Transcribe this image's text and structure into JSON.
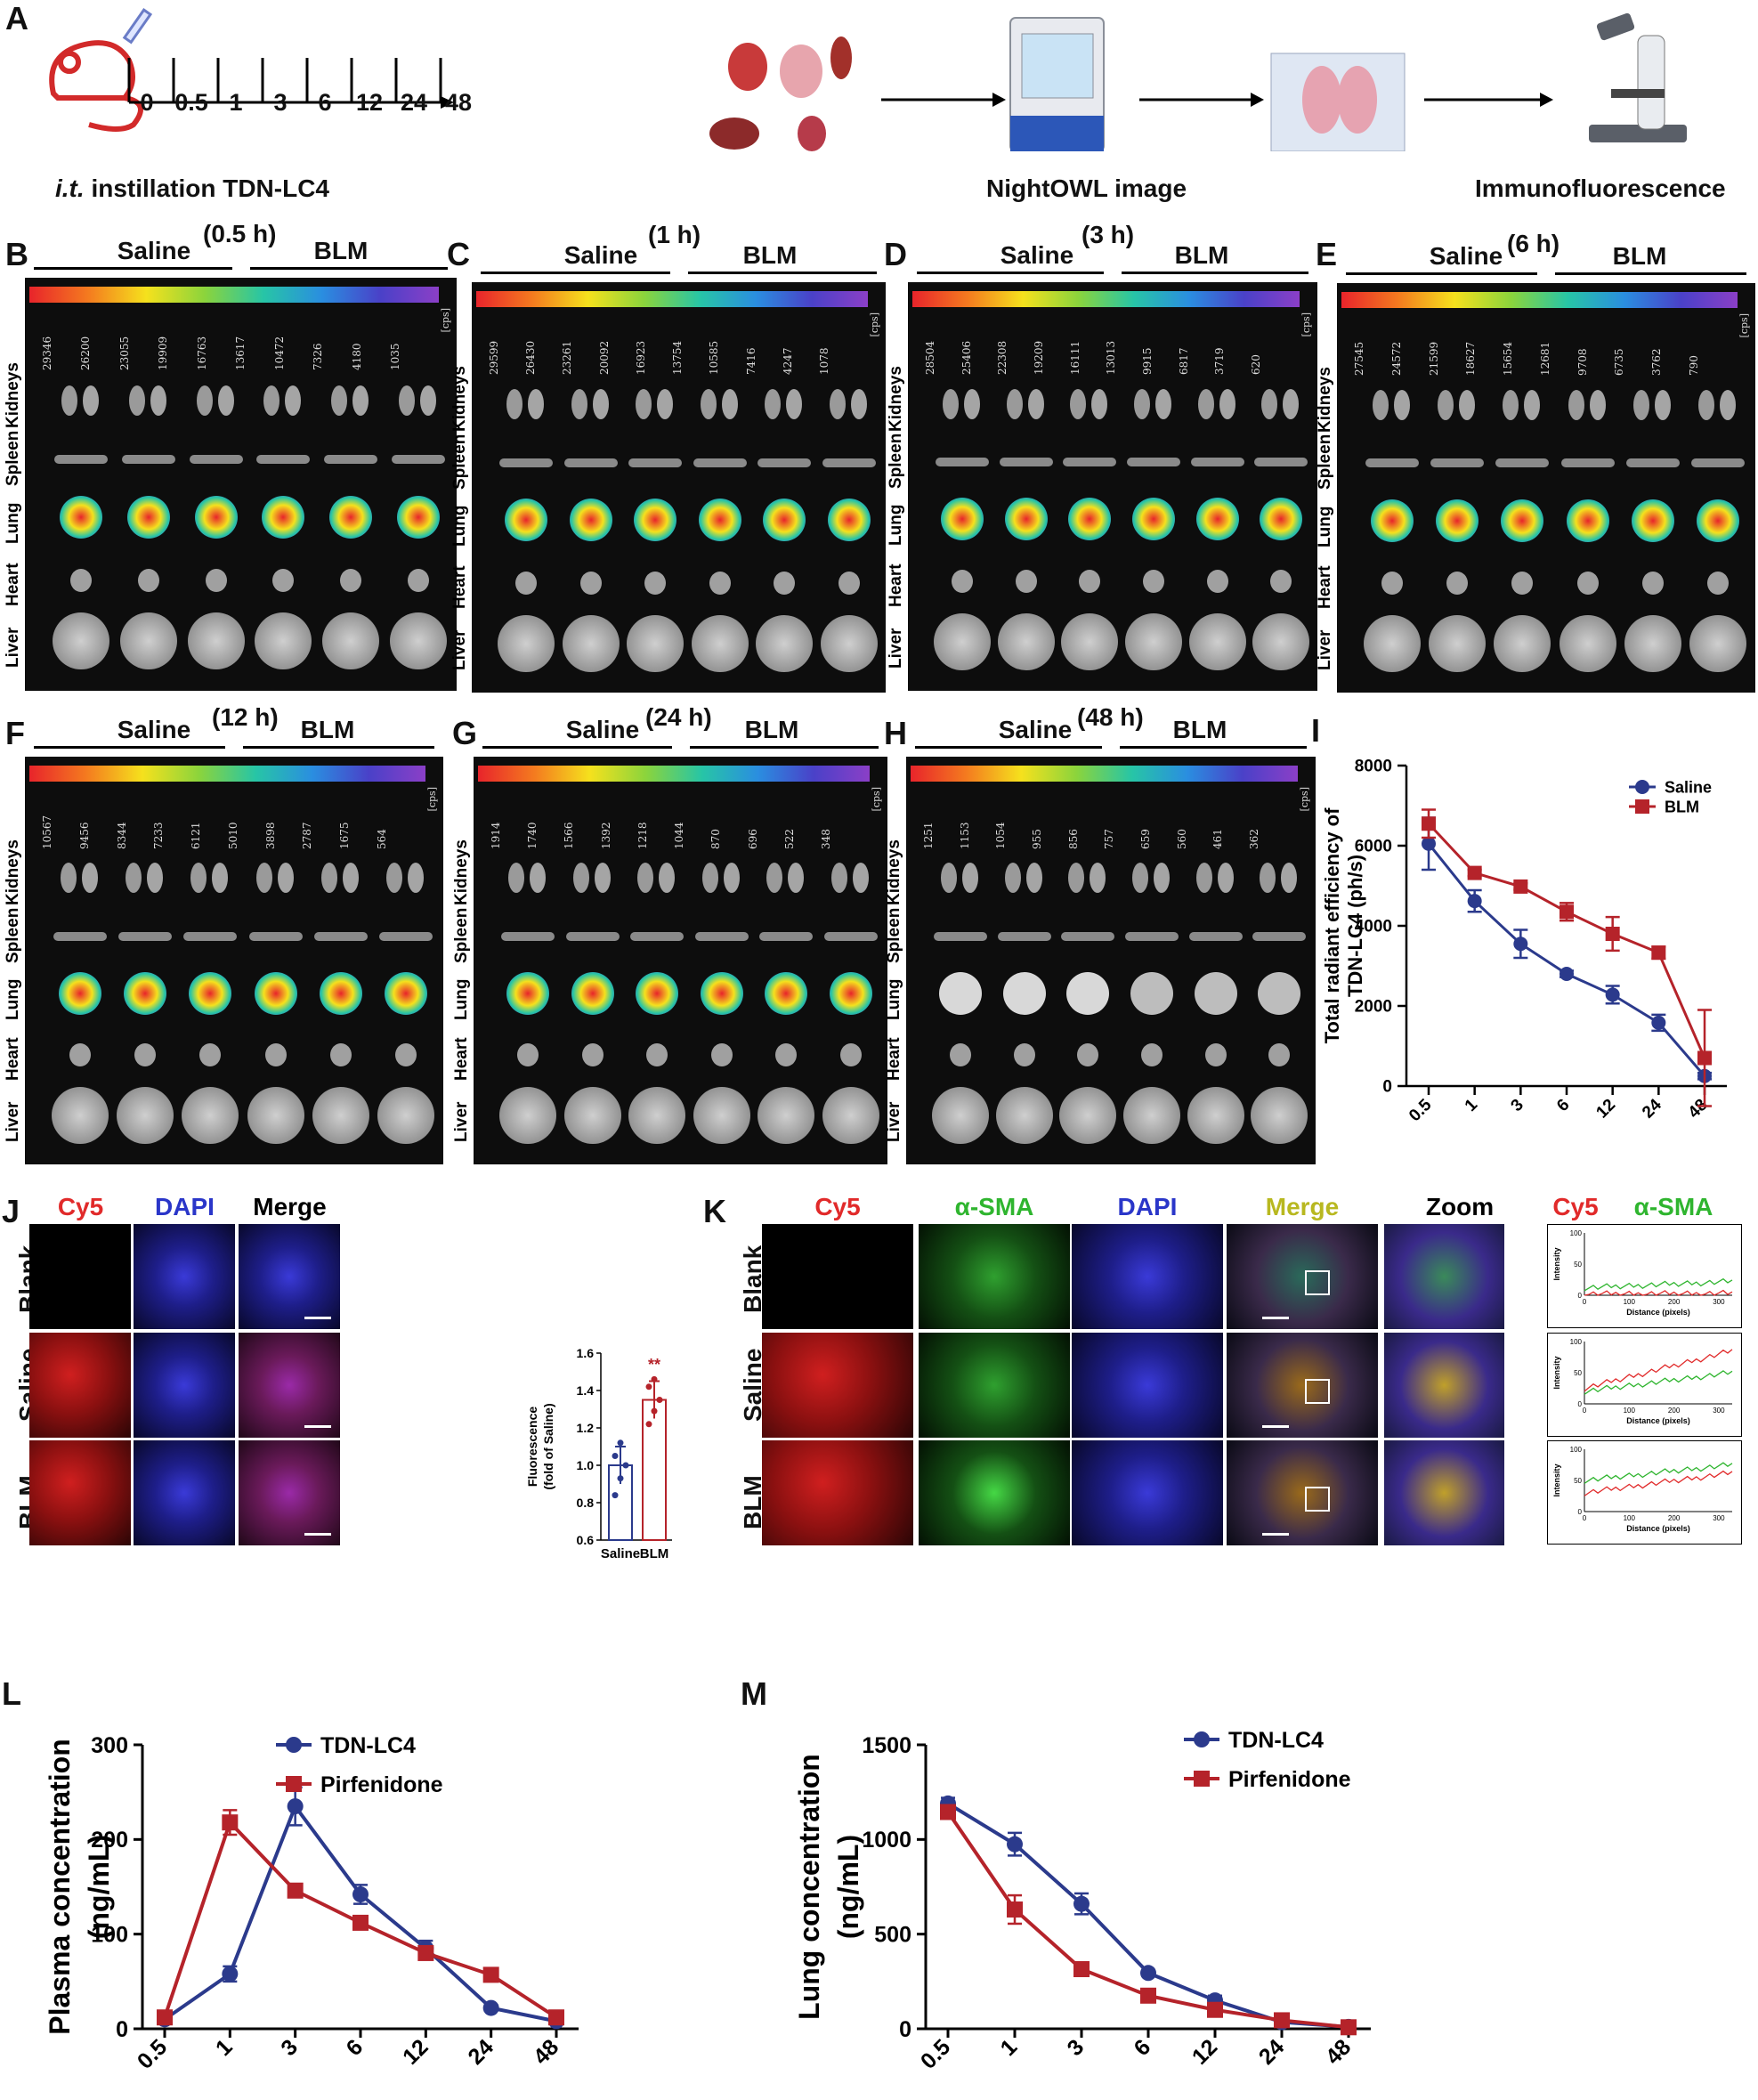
{
  "panel_letters": {
    "A": "A",
    "B": "B",
    "C": "C",
    "D": "D",
    "E": "E",
    "F": "F",
    "G": "G",
    "H": "H",
    "I": "I",
    "J": "J",
    "K": "K",
    "L": "L",
    "M": "M"
  },
  "schematic": {
    "timepoints": [
      "0",
      "0.5",
      "1",
      "3",
      "6",
      "12",
      "24",
      "48"
    ],
    "instillation_prefix": "i.t.",
    "instillation_suffix": " instillation TDN-LC4",
    "step2": "NightOWL image",
    "step3": "Immunofluorescence"
  },
  "imaging": {
    "group_saline": "Saline",
    "group_blm": "BLM",
    "unit": "[cps]",
    "rows": [
      "Liver",
      "Heart",
      "Lung",
      "Spleen",
      "Kidneys"
    ],
    "panels": [
      {
        "letter": "B",
        "time": "(0.5 h)",
        "scale": [
          "29346",
          "26200",
          "23055",
          "19909",
          "16763",
          "13617",
          "10472",
          "7326",
          "4180",
          "1035"
        ]
      },
      {
        "letter": "C",
        "time": "(1 h)",
        "scale": [
          "29599",
          "26430",
          "23261",
          "20092",
          "16923",
          "13754",
          "10585",
          "7416",
          "4247",
          "1078"
        ]
      },
      {
        "letter": "D",
        "time": "(3 h)",
        "scale": [
          "28504",
          "25406",
          "22308",
          "19209",
          "16111",
          "13013",
          "9915",
          "6817",
          "3719",
          "620"
        ]
      },
      {
        "letter": "E",
        "time": "(6 h)",
        "scale": [
          "27545",
          "24572",
          "21599",
          "18627",
          "15654",
          "12681",
          "9708",
          "6735",
          "3762",
          "790"
        ]
      },
      {
        "letter": "F",
        "time": "(12 h)",
        "scale": [
          "10567",
          "9456",
          "8344",
          "7233",
          "6121",
          "5010",
          "3898",
          "2787",
          "1675",
          "564"
        ]
      },
      {
        "letter": "G",
        "time": "(24 h)",
        "scale": [
          "1914",
          "1740",
          "1566",
          "1392",
          "1218",
          "1044",
          "870",
          "696",
          "522",
          "348"
        ]
      },
      {
        "letter": "H",
        "time": "(48 h)",
        "scale": [
          "1251",
          "1153",
          "1054",
          "955",
          "856",
          "757",
          "659",
          "560",
          "461",
          "362"
        ]
      }
    ]
  },
  "panel_i": {
    "ylabel_line1": "Total radiant efficiency of",
    "ylabel_line2": "TDN-LC4 (ph/s)"
  },
  "panel_j": {
    "columns": [
      "Cy5",
      "DAPI",
      "Merge"
    ],
    "rows": [
      "Blank",
      "Saline",
      "BLM"
    ],
    "bar_ylabel_line1": "Fluorescence",
    "bar_ylabel_line2": "(fold of Saline)",
    "significance": "**"
  },
  "panel_k": {
    "columns": [
      "Cy5",
      "α-SMA",
      "DAPI",
      "Merge",
      "Zoom"
    ],
    "rows": [
      "Blank",
      "Saline",
      "BLM"
    ],
    "profile_title_cy5": "Cy5",
    "profile_title_sma": "α-SMA",
    "profile_ylabel": "Intensity",
    "profile_xlabel": "Distance (pixels)"
  },
  "panel_l": {
    "ylabel_line1": "Plasma concentration",
    "ylabel_line2": "(ng/mL)"
  },
  "panel_m": {
    "ylabel_line1": "Lung concentration",
    "ylabel_line2": "(ng/mL)"
  },
  "colors": {
    "saline": "#2b3a8c",
    "blm": "#b5232a",
    "tdn": "#2b3a8c",
    "pirfenidone": "#b5232a",
    "cy5": "#e12a2a",
    "sma": "#2fb52f",
    "dapi": "#2a36c9",
    "merge": "#b8b820"
  },
  "chart_data": [
    {
      "id": "I",
      "type": "line",
      "categories": [
        "0.5",
        "1",
        "3",
        "6",
        "12",
        "24",
        "48"
      ],
      "ylim": [
        0,
        8000
      ],
      "yticks": [
        0,
        2000,
        4000,
        6000,
        8000
      ],
      "legend_position": "top-right",
      "series": [
        {
          "name": "Saline",
          "values": [
            6050,
            4620,
            3550,
            2800,
            2280,
            1580,
            250
          ],
          "errors": [
            650,
            270,
            350,
            80,
            220,
            200,
            80
          ]
        },
        {
          "name": "BLM",
          "values": [
            6550,
            5320,
            4980,
            4350,
            3800,
            3330,
            700
          ],
          "errors": [
            350,
            80,
            80,
            220,
            420,
            150,
            1200
          ]
        }
      ]
    },
    {
      "id": "J-bar",
      "type": "bar",
      "categories": [
        "Saline",
        "BLM"
      ],
      "values": [
        1.0,
        1.35
      ],
      "errors": [
        0.1,
        0.1
      ],
      "points": [
        [
          0.84,
          0.93,
          1.0,
          1.05,
          1.12
        ],
        [
          1.22,
          1.29,
          1.35,
          1.42,
          1.46
        ]
      ],
      "ylim": [
        0.6,
        1.6
      ],
      "yticks": [
        0.6,
        0.8,
        1.0,
        1.2,
        1.4,
        1.6
      ]
    },
    {
      "id": "K-profiles",
      "type": "line",
      "xlim": [
        0,
        330
      ],
      "xticks": [
        0,
        100,
        200,
        300
      ],
      "ylim": [
        0,
        100
      ],
      "yticks": [
        0,
        50,
        100
      ],
      "profiles": [
        {
          "row": "Blank",
          "cy5_level": [
            2,
            3
          ],
          "sma_level": [
            12,
            22
          ]
        },
        {
          "row": "Saline",
          "cy5_level": [
            25,
            85
          ],
          "sma_level": [
            20,
            50
          ]
        },
        {
          "row": "BLM",
          "cy5_level": [
            30,
            62
          ],
          "sma_level": [
            50,
            75
          ]
        }
      ]
    },
    {
      "id": "L",
      "type": "line",
      "categories": [
        "0.5",
        "1",
        "3",
        "6",
        "12",
        "24",
        "48"
      ],
      "ylim": [
        0,
        300
      ],
      "yticks": [
        0,
        100,
        200,
        300
      ],
      "legend_position": "top-right",
      "series": [
        {
          "name": "TDN-LC4",
          "values": [
            10,
            58,
            235,
            142,
            85,
            22,
            8
          ],
          "errors": [
            3,
            8,
            20,
            10,
            8,
            3,
            2
          ]
        },
        {
          "name": "Pirfenidone",
          "values": [
            12,
            218,
            146,
            112,
            80,
            57,
            12
          ],
          "errors": [
            3,
            13,
            4,
            5,
            4,
            4,
            2
          ]
        }
      ]
    },
    {
      "id": "M",
      "type": "line",
      "categories": [
        "0.5",
        "1",
        "3",
        "6",
        "12",
        "24",
        "48"
      ],
      "ylim": [
        0,
        1500
      ],
      "yticks": [
        0,
        500,
        1000,
        1500
      ],
      "legend_position": "top-right",
      "series": [
        {
          "name": "TDN-LC4",
          "values": [
            1190,
            975,
            660,
            295,
            150,
            35,
            10
          ],
          "errors": [
            30,
            60,
            55,
            15,
            25,
            8,
            3
          ]
        },
        {
          "name": "Pirfenidone",
          "values": [
            1145,
            630,
            315,
            175,
            100,
            45,
            8
          ],
          "errors": [
            25,
            75,
            35,
            12,
            10,
            6,
            3
          ]
        }
      ]
    }
  ]
}
